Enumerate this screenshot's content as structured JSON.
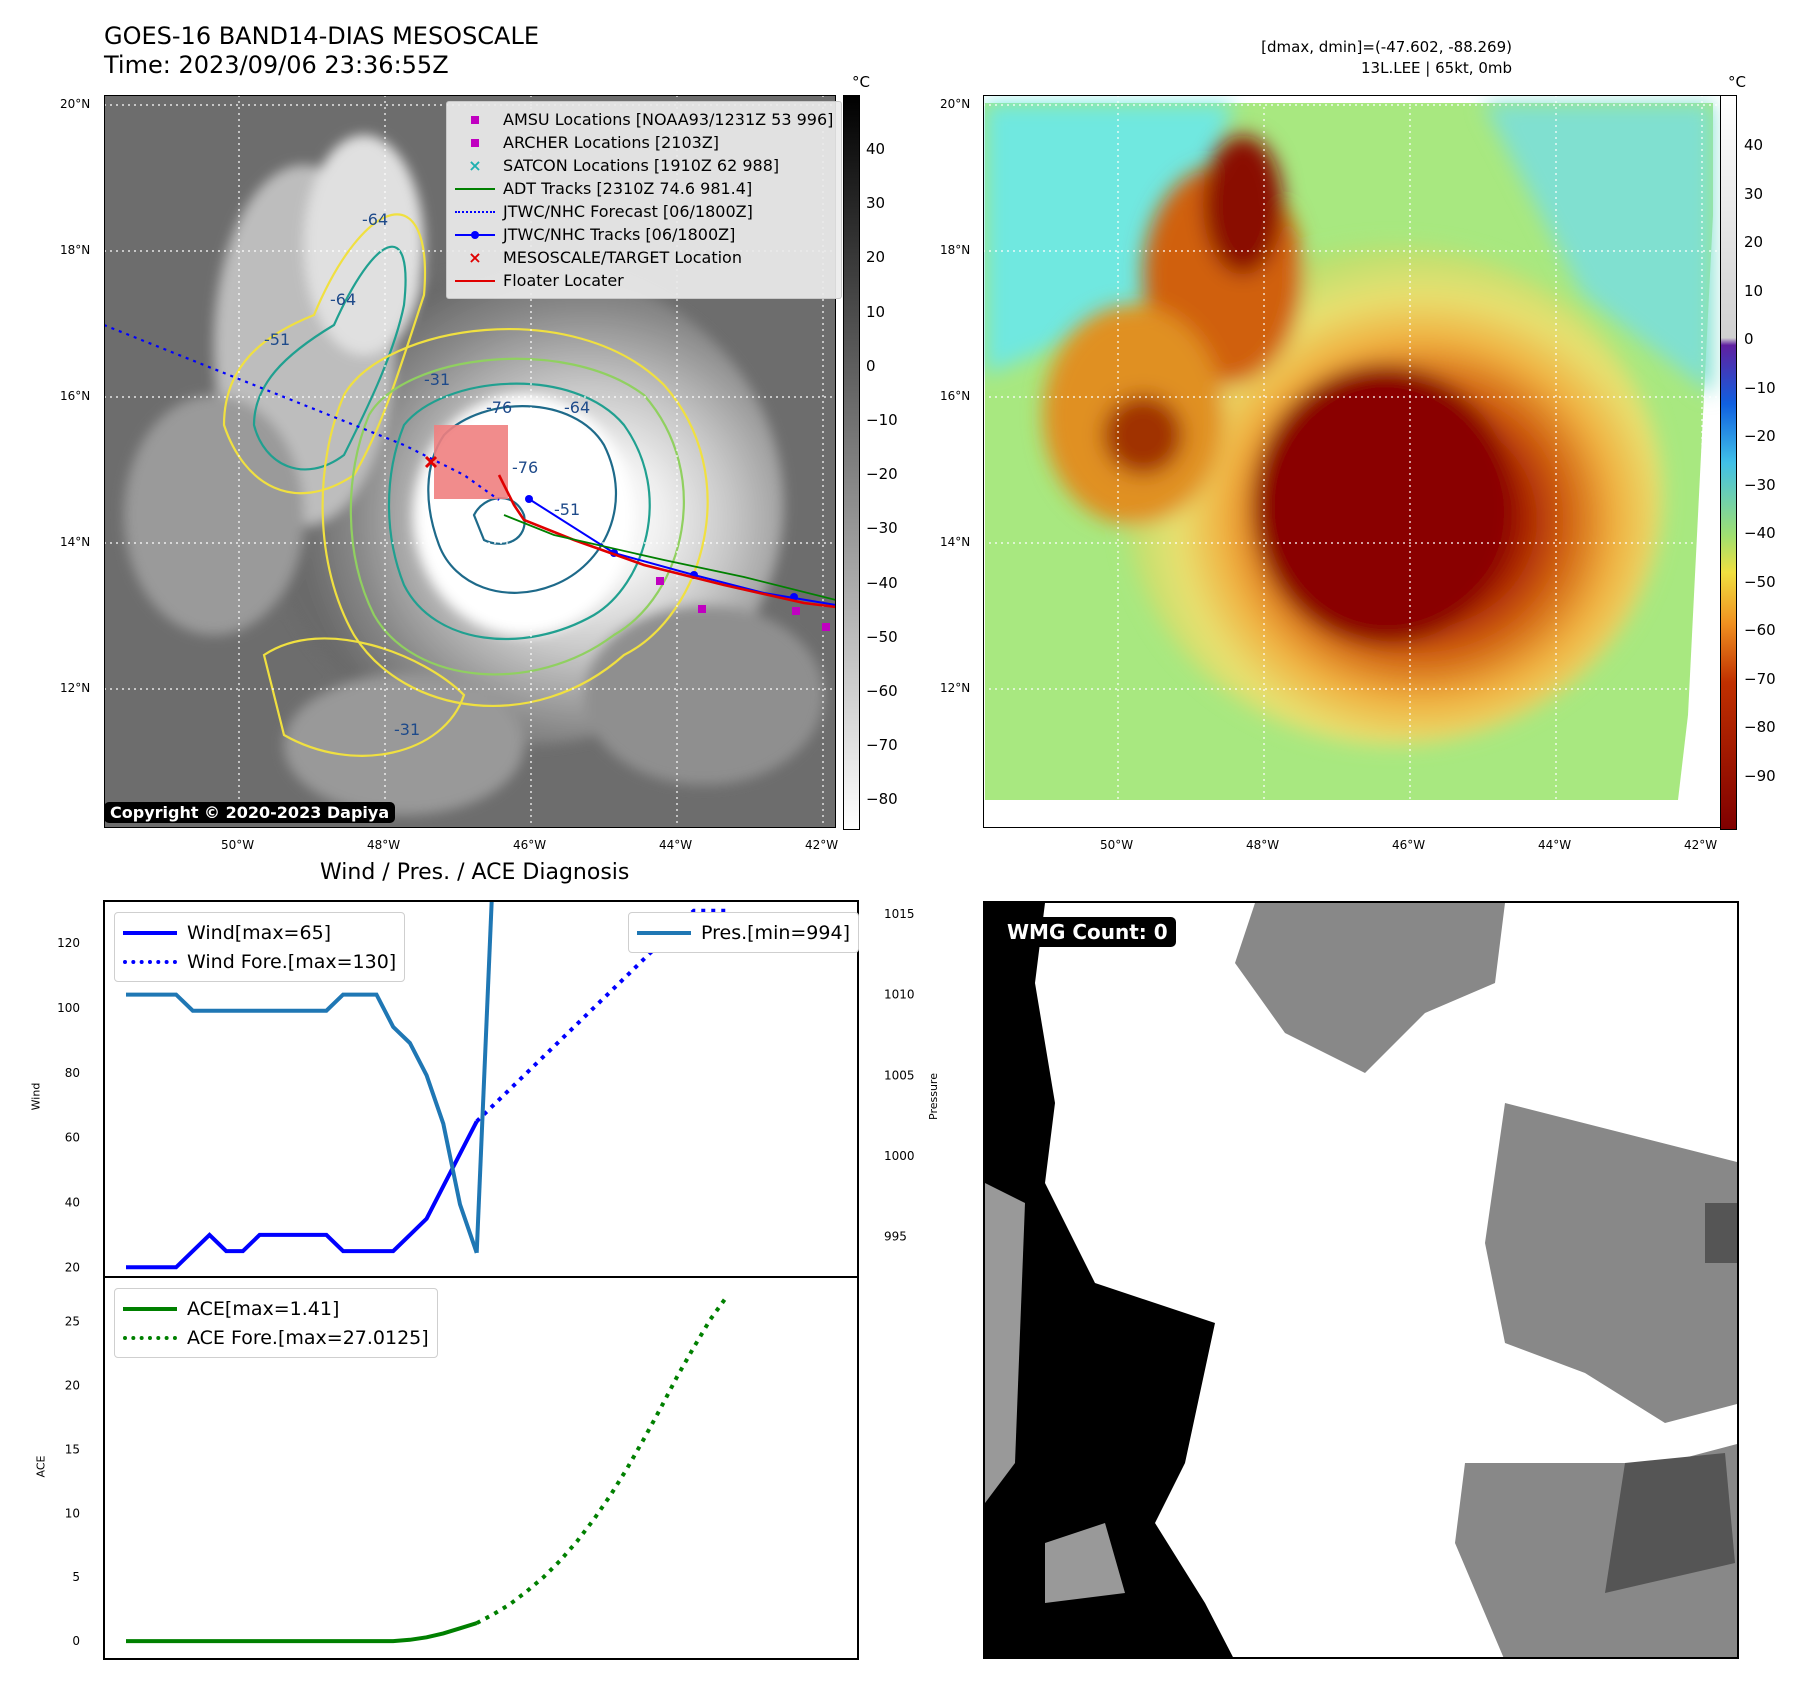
{
  "header": {
    "title_line1": "GOES-16 BAND14-DIAS MESOSCALE",
    "title_line2": "Time: 2023/09/06 23:36:55Z",
    "dminmax": "[dmax, dmin]=(-47.602, -88.269)",
    "storm_info": "13L.LEE | 65kt, 0mb"
  },
  "map": {
    "lat_labels": [
      "20°N",
      "18°N",
      "16°N",
      "14°N",
      "12°N"
    ],
    "lon_labels": [
      "50°W",
      "48°W",
      "46°W",
      "44°W",
      "42°W"
    ],
    "copyright": "Copyright © 2020-2023 Dapiya",
    "contour_labels": [
      "-76",
      "-76",
      "-64",
      "-64",
      "-51",
      "-31",
      "-31",
      "-64",
      "-51"
    ],
    "legend": [
      {
        "label": "AMSU Locations [NOAA93/1231Z 53 996]",
        "color": "#c000c0",
        "kind": "square"
      },
      {
        "label": "ARCHER Locations [2103Z]",
        "color": "#c000c0",
        "kind": "square"
      },
      {
        "label": "SATCON Locations [1910Z 62 988]",
        "color": "#20b0b0",
        "kind": "x"
      },
      {
        "label": "ADT Tracks [2310Z 74.6 981.4]",
        "color": "#008000",
        "kind": "line"
      },
      {
        "label": "JTWC/NHC Forecast [06/1800Z]",
        "color": "#0000ff",
        "kind": "dotted"
      },
      {
        "label": "JTWC/NHC Tracks [06/1800Z]",
        "color": "#0000ff",
        "kind": "line-dot"
      },
      {
        "label": "MESOSCALE/TARGET Location",
        "color": "#e00000",
        "kind": "x"
      },
      {
        "label": "Floater Locater",
        "color": "#e00000",
        "kind": "line"
      }
    ],
    "colorbar_unit": "°C",
    "gray_colorbar_ticks": [
      "40",
      "30",
      "20",
      "10",
      "0",
      "−10",
      "−20",
      "−30",
      "−40",
      "−50",
      "−60",
      "−70",
      "−80"
    ],
    "color_colorbar_ticks": [
      "40",
      "30",
      "20",
      "10",
      "0",
      "−10",
      "−20",
      "−30",
      "−40",
      "−50",
      "−60",
      "−70",
      "−80",
      "−90"
    ]
  },
  "wmg": {
    "label": "WMG Count: 0"
  },
  "chart_data": [
    {
      "type": "line",
      "title": "Wind / Pres. / ACE Diagnosis",
      "ylabel": "Wind",
      "y2label": "Pressure",
      "ylim": [
        17,
        133
      ],
      "y2lim": [
        992.5,
        1015.8
      ],
      "yticks": [
        "120",
        "100",
        "80",
        "60",
        "40",
        "20"
      ],
      "y2ticks": [
        "1015",
        "1010",
        "1005",
        "1000",
        "995"
      ],
      "series": [
        {
          "name": "Wind[max=65]",
          "color": "#0000ff",
          "style": "solid",
          "x": [
            0,
            1,
            2,
            3,
            4,
            5,
            6,
            7,
            8,
            9,
            10,
            11,
            12,
            13,
            14,
            15,
            16,
            17,
            18,
            19,
            20,
            21
          ],
          "values": [
            20,
            20,
            20,
            20,
            25,
            30,
            25,
            25,
            30,
            30,
            30,
            30,
            30,
            25,
            25,
            25,
            25,
            30,
            35,
            45,
            55,
            65
          ]
        },
        {
          "name": "Wind Fore.[max=130]",
          "color": "#0000ff",
          "style": "dotted",
          "x": [
            21,
            22,
            23,
            24,
            25,
            26,
            27,
            28,
            29,
            30,
            31,
            32,
            33,
            34,
            35,
            36
          ],
          "values": [
            65,
            70,
            75,
            80,
            85,
            90,
            95,
            100,
            105,
            110,
            115,
            120,
            125,
            130,
            130,
            130
          ]
        },
        {
          "name": "Pres.[min=994]",
          "color": "#1f77b4",
          "style": "solid",
          "axis": "right",
          "x": [
            0,
            1,
            2,
            3,
            4,
            5,
            6,
            7,
            8,
            9,
            10,
            11,
            12,
            13,
            14,
            15,
            16,
            17,
            18,
            19,
            20,
            21
          ],
          "values": [
            1010,
            1010,
            1010,
            1010,
            1009,
            1009,
            1009,
            1009,
            1009,
            1009,
            1009,
            1009,
            1009,
            1010,
            1010,
            1010,
            1008,
            1007,
            1005,
            1002,
            997,
            994
          ]
        },
        {
          "name": "",
          "color": "#1f77b4",
          "style": "solid",
          "axis": "right",
          "x": [
            21,
            21.9
          ],
          "values": [
            994,
            1015.8
          ]
        }
      ]
    },
    {
      "type": "line",
      "ylabel": "ACE",
      "ylim": [
        -1.4,
        28.5
      ],
      "yticks": [
        "25",
        "20",
        "15",
        "10",
        "5",
        "0"
      ],
      "series": [
        {
          "name": "ACE[max=1.41]",
          "color": "#008000",
          "style": "solid",
          "x": [
            0,
            2,
            4,
            6,
            8,
            10,
            12,
            14,
            15,
            16,
            17,
            18,
            19,
            20,
            21
          ],
          "values": [
            0,
            0,
            0,
            0,
            0,
            0,
            0,
            0,
            0,
            0,
            0.1,
            0.3,
            0.6,
            1.0,
            1.41
          ]
        },
        {
          "name": "ACE Fore.[max=27.0125]",
          "color": "#008000",
          "style": "dotted",
          "x": [
            21,
            22,
            23,
            24,
            25,
            26,
            27,
            28,
            29,
            30,
            31,
            32,
            33,
            34,
            35,
            36
          ],
          "values": [
            1.41,
            2.1,
            2.9,
            3.9,
            5.0,
            6.3,
            7.8,
            9.5,
            11.4,
            13.5,
            15.8,
            18.2,
            20.7,
            23.0,
            25.2,
            27.0125
          ]
        }
      ]
    }
  ]
}
